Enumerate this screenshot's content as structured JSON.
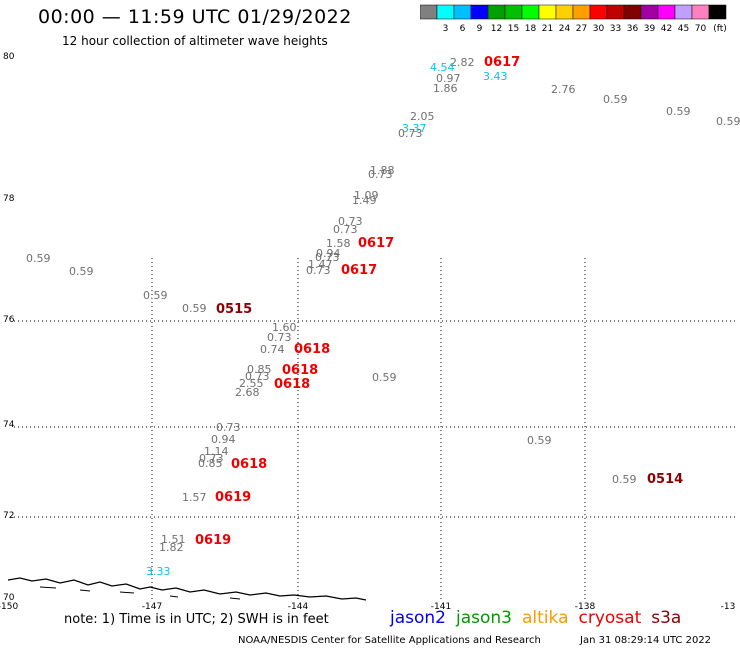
{
  "header": {
    "title": "00:00 — 11:59 UTC 01/29/2022",
    "subtitle": "12 hour collection of altimeter wave heights"
  },
  "legend": {
    "unit_label": "(ft)",
    "swatches": [
      {
        "color": "#808080",
        "label": ""
      },
      {
        "color": "#00ffff",
        "label": "3"
      },
      {
        "color": "#00bfff",
        "label": "6"
      },
      {
        "color": "#0000ff",
        "label": "9"
      },
      {
        "color": "#00a000",
        "label": "12"
      },
      {
        "color": "#00c000",
        "label": "15"
      },
      {
        "color": "#00ff00",
        "label": "18"
      },
      {
        "color": "#ffff00",
        "label": "21"
      },
      {
        "color": "#ffd000",
        "label": "24"
      },
      {
        "color": "#ffa000",
        "label": "27"
      },
      {
        "color": "#ff0000",
        "label": "30"
      },
      {
        "color": "#c00000",
        "label": "33"
      },
      {
        "color": "#800000",
        "label": "36"
      },
      {
        "color": "#a000a0",
        "label": "39"
      },
      {
        "color": "#ff00ff",
        "label": "42"
      },
      {
        "color": "#c0a0ff",
        "label": "45"
      },
      {
        "color": "#ff80c0",
        "label": "70"
      },
      {
        "color": "#000000",
        "label": ""
      }
    ]
  },
  "axes": {
    "x_ticks": [
      "-150",
      "-147",
      "-144",
      "-141",
      "-138",
      "-13"
    ],
    "y_ticks": [
      "80",
      "78",
      "76",
      "74",
      "72",
      "70"
    ]
  },
  "readings": [
    {
      "v": "2.82",
      "c": "gray"
    },
    {
      "v": "4.54",
      "c": "cyan"
    },
    {
      "v": "0.97",
      "c": "gray"
    },
    {
      "v": "1.86",
      "c": "gray"
    },
    {
      "v": "3.43",
      "c": "cyan"
    },
    {
      "v": "2.76",
      "c": "gray"
    },
    {
      "v": "0.59",
      "c": "gray"
    },
    {
      "v": "0.59",
      "c": "gray"
    },
    {
      "v": "0.59",
      "c": "gray"
    },
    {
      "v": "2.05",
      "c": "gray"
    },
    {
      "v": "3.37",
      "c": "cyan"
    },
    {
      "v": "0.73",
      "c": "gray"
    },
    {
      "v": "1.88",
      "c": "gray"
    },
    {
      "v": "0.73",
      "c": "gray"
    },
    {
      "v": "1.09",
      "c": "gray"
    },
    {
      "v": "1.49",
      "c": "gray"
    },
    {
      "v": "0.73",
      "c": "gray"
    },
    {
      "v": "0.73",
      "c": "gray"
    },
    {
      "v": "1.58",
      "c": "gray"
    },
    {
      "v": "0.94",
      "c": "gray"
    },
    {
      "v": "0.73",
      "c": "gray"
    },
    {
      "v": "1.47",
      "c": "gray"
    },
    {
      "v": "0.73",
      "c": "gray"
    },
    {
      "v": "0.59",
      "c": "gray"
    },
    {
      "v": "0.59",
      "c": "gray"
    },
    {
      "v": "0.59",
      "c": "gray"
    },
    {
      "v": "0.59",
      "c": "gray"
    },
    {
      "v": "1.60",
      "c": "gray"
    },
    {
      "v": "0.73",
      "c": "gray"
    },
    {
      "v": "0.74",
      "c": "gray"
    },
    {
      "v": "0.85",
      "c": "gray"
    },
    {
      "v": "0.73",
      "c": "gray"
    },
    {
      "v": "2.55",
      "c": "gray"
    },
    {
      "v": "2.68",
      "c": "gray"
    },
    {
      "v": "0.59",
      "c": "gray"
    },
    {
      "v": "0.73",
      "c": "gray"
    },
    {
      "v": "0.94",
      "c": "gray"
    },
    {
      "v": "1.14",
      "c": "gray"
    },
    {
      "v": "0.73",
      "c": "gray"
    },
    {
      "v": "0.85",
      "c": "gray"
    },
    {
      "v": "0.59",
      "c": "gray"
    },
    {
      "v": "0.59",
      "c": "gray"
    },
    {
      "v": "1.57",
      "c": "gray"
    },
    {
      "v": "1.51",
      "c": "gray"
    },
    {
      "v": "1.82",
      "c": "gray"
    },
    {
      "v": "3.33",
      "c": "cyan"
    }
  ],
  "pass_labels": [
    {
      "t": "0617",
      "c": "#ee0000"
    },
    {
      "t": "0617",
      "c": "#ee0000"
    },
    {
      "t": "0617",
      "c": "#ee0000"
    },
    {
      "t": "0515",
      "c": "#8b0000"
    },
    {
      "t": "0618",
      "c": "#ee0000"
    },
    {
      "t": "0618",
      "c": "#ee0000"
    },
    {
      "t": "0618",
      "c": "#ee0000"
    },
    {
      "t": "0618",
      "c": "#ee0000"
    },
    {
      "t": "0619",
      "c": "#ee0000"
    },
    {
      "t": "0619",
      "c": "#ee0000"
    },
    {
      "t": "0514",
      "c": "#8b0000"
    }
  ],
  "satellites": [
    {
      "name": "jason2",
      "color": "#0000ee"
    },
    {
      "name": "jason3",
      "color": "#009900"
    },
    {
      "name": "altika",
      "color": "#ff9900"
    },
    {
      "name": "cryosat",
      "color": "#ee0000"
    },
    {
      "name": "s3a",
      "color": "#8b0000"
    }
  ],
  "note": "note: 1) Time is in UTC; 2) SWH is in feet",
  "footer": {
    "credit": "NOAA/NESDIS Center for Satellite Applications and Research",
    "timestamp": "Jan 31 08:29:14 UTC 2022"
  }
}
